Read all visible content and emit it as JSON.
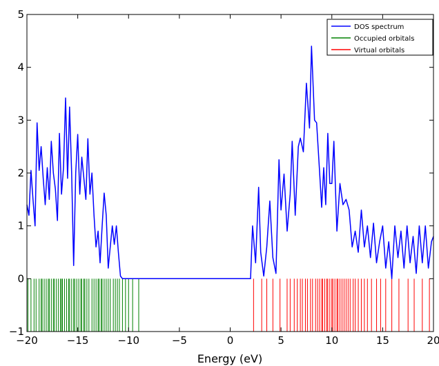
{
  "chart_data": {
    "type": "line",
    "xlabel": "Energy (eV)",
    "ylabel": "",
    "xlim": [
      -20,
      20
    ],
    "ylim": [
      -1,
      5
    ],
    "grid": false,
    "legend_position": "top-right",
    "x_ticks": [
      "−20",
      "−15",
      "−10",
      "−5",
      "0",
      "5",
      "10",
      "15",
      "20"
    ],
    "y_ticks": [
      "−1",
      "0",
      "1",
      "2",
      "3",
      "4",
      "5"
    ],
    "colors": {
      "dos": "#0000ff",
      "occupied": "#008000",
      "virtual": "#ff0000"
    },
    "series": [
      {
        "name": "DOS spectrum",
        "kind": "line",
        "x": [
          -20.0,
          -19.8,
          -19.6,
          -19.4,
          -19.2,
          -19.0,
          -18.8,
          -18.6,
          -18.4,
          -18.2,
          -18.0,
          -17.8,
          -17.6,
          -17.4,
          -17.2,
          -17.0,
          -16.8,
          -16.6,
          -16.4,
          -16.2,
          -16.0,
          -15.8,
          -15.6,
          -15.4,
          -15.2,
          -15.0,
          -14.8,
          -14.6,
          -14.4,
          -14.2,
          -14.0,
          -13.8,
          -13.6,
          -13.4,
          -13.2,
          -13.0,
          -12.8,
          -12.6,
          -12.4,
          -12.2,
          -12.0,
          -11.8,
          -11.6,
          -11.4,
          -11.2,
          -11.0,
          -10.8,
          -10.6,
          -10.4,
          -10.2,
          -10.0,
          -9.8,
          -9.6,
          -9.4,
          -9.2,
          -9.0,
          -8.8,
          -8.5,
          2.0,
          2.2,
          2.5,
          2.8,
          3.0,
          3.3,
          3.6,
          3.9,
          4.2,
          4.5,
          4.8,
          5.0,
          5.3,
          5.6,
          5.9,
          6.1,
          6.4,
          6.7,
          6.9,
          7.2,
          7.5,
          7.8,
          8.0,
          8.3,
          8.5,
          8.8,
          9.0,
          9.2,
          9.4,
          9.6,
          9.8,
          10.0,
          10.2,
          10.5,
          10.8,
          11.1,
          11.4,
          11.7,
          12.0,
          12.3,
          12.6,
          12.9,
          13.2,
          13.5,
          13.8,
          14.1,
          14.4,
          14.7,
          15.0,
          15.3,
          15.6,
          15.9,
          16.2,
          16.5,
          16.8,
          17.1,
          17.4,
          17.7,
          18.0,
          18.3,
          18.6,
          18.9,
          19.2,
          19.5,
          19.8,
          20.0
        ],
        "y": [
          1.4,
          1.2,
          2.05,
          1.5,
          1.0,
          2.95,
          2.05,
          2.5,
          1.9,
          1.4,
          2.1,
          1.5,
          2.6,
          2.0,
          1.7,
          1.1,
          2.75,
          1.6,
          2.1,
          3.42,
          1.9,
          3.25,
          2.0,
          0.25,
          2.0,
          2.73,
          1.6,
          2.3,
          1.9,
          1.5,
          2.65,
          1.6,
          2.0,
          1.2,
          0.6,
          0.9,
          0.3,
          1.0,
          1.62,
          1.2,
          0.2,
          0.6,
          1.0,
          0.65,
          1.0,
          0.5,
          0.05,
          0.0,
          0.0,
          0.0,
          0.0,
          0.0,
          0.0,
          0.0,
          0.0,
          0.0,
          0.0,
          0.0,
          0.0,
          1.0,
          0.3,
          1.73,
          0.5,
          0.05,
          0.6,
          1.47,
          0.4,
          0.1,
          2.25,
          1.3,
          1.98,
          0.9,
          1.6,
          2.6,
          1.2,
          2.5,
          2.66,
          2.4,
          3.7,
          2.85,
          4.4,
          3.0,
          2.95,
          2.0,
          1.35,
          2.1,
          1.4,
          2.75,
          1.8,
          1.8,
          2.6,
          0.9,
          1.8,
          1.4,
          1.5,
          1.3,
          0.6,
          0.9,
          0.5,
          1.3,
          0.6,
          1.0,
          0.4,
          1.05,
          0.3,
          0.7,
          1.0,
          0.2,
          0.7,
          0.0,
          1.0,
          0.4,
          0.9,
          0.2,
          1.0,
          0.3,
          0.8,
          0.1,
          1.0,
          0.3,
          1.0,
          0.2,
          0.7,
          0.8
        ]
      },
      {
        "name": "Occupied orbitals",
        "kind": "sticks",
        "x": [
          -19.9,
          -19.6,
          -19.3,
          -19.1,
          -18.8,
          -18.6,
          -18.5,
          -18.3,
          -18.1,
          -17.9,
          -17.8,
          -17.6,
          -17.4,
          -17.3,
          -17.1,
          -16.9,
          -16.7,
          -16.6,
          -16.5,
          -16.3,
          -16.1,
          -15.9,
          -15.8,
          -15.6,
          -15.4,
          -15.3,
          -15.1,
          -14.9,
          -14.7,
          -14.6,
          -14.4,
          -14.3,
          -14.1,
          -13.9,
          -13.6,
          -13.4,
          -13.2,
          -13.0,
          -12.9,
          -12.7,
          -12.6,
          -12.4,
          -12.2,
          -12.0,
          -11.8,
          -11.5,
          -11.3,
          -11.1,
          -10.9,
          -10.6,
          -10.3,
          -10.0,
          -9.6,
          -9.0
        ],
        "height": -1.0
      },
      {
        "name": "Virtual orbitals",
        "kind": "sticks",
        "x": [
          2.3,
          3.1,
          3.6,
          4.2,
          4.9,
          5.6,
          5.9,
          6.3,
          6.6,
          6.9,
          7.1,
          7.4,
          7.6,
          7.9,
          8.1,
          8.4,
          8.6,
          8.8,
          9.0,
          9.1,
          9.3,
          9.5,
          9.6,
          9.8,
          10.0,
          10.1,
          10.3,
          10.5,
          10.6,
          10.8,
          11.0,
          11.2,
          11.4,
          11.6,
          11.8,
          12.1,
          12.3,
          12.6,
          12.9,
          13.2,
          13.5,
          13.9,
          14.4,
          14.8,
          15.3,
          15.9,
          16.6,
          17.5,
          18.1,
          18.9,
          19.6
        ],
        "height": -1.0
      }
    ]
  }
}
